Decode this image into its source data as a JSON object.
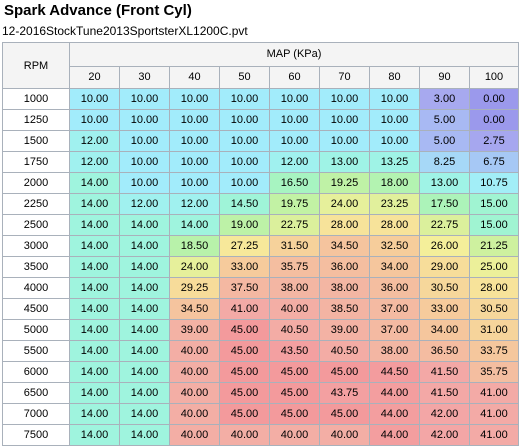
{
  "title": "Spark Advance (Front Cyl)",
  "filename": "12-2016StockTune2013SportsterXL1200C.pvt",
  "table": {
    "row_header_label": "RPM",
    "col_header_label": "MAP (KPa)",
    "map_values": [
      "20",
      "30",
      "40",
      "50",
      "60",
      "70",
      "80",
      "90",
      "100"
    ],
    "rows": [
      {
        "rpm": "1000",
        "values": [
          "10.00",
          "10.00",
          "10.00",
          "10.00",
          "10.00",
          "10.00",
          "10.00",
          "3.00",
          "0.00"
        ],
        "colors": [
          "#a2ecfb",
          "#a2ecfb",
          "#a2ecfb",
          "#a2ecfb",
          "#a2ecfb",
          "#a2ecfb",
          "#a2ecfb",
          "#a7a9ef",
          "#9b99ec"
        ]
      },
      {
        "rpm": "1250",
        "values": [
          "10.00",
          "10.00",
          "10.00",
          "10.00",
          "10.00",
          "10.00",
          "10.00",
          "5.00",
          "0.00"
        ],
        "colors": [
          "#a2ecfb",
          "#a2ecfb",
          "#a2ecfb",
          "#a2ecfb",
          "#a2ecfb",
          "#a2ecfb",
          "#a2ecfb",
          "#a8b9f3",
          "#9b99ec"
        ]
      },
      {
        "rpm": "1500",
        "values": [
          "12.00",
          "10.00",
          "10.00",
          "10.00",
          "10.00",
          "10.00",
          "10.00",
          "5.00",
          "2.75"
        ],
        "colors": [
          "#a0f1ef",
          "#a2ecfb",
          "#a2ecfb",
          "#a2ecfb",
          "#a2ecfb",
          "#a2ecfb",
          "#a2ecfb",
          "#a8b9f3",
          "#a6a7ef"
        ]
      },
      {
        "rpm": "1750",
        "values": [
          "12.00",
          "10.00",
          "10.00",
          "10.00",
          "12.00",
          "13.00",
          "13.25",
          "8.25",
          "6.75"
        ],
        "colors": [
          "#a0f1ef",
          "#a2ecfb",
          "#a2ecfb",
          "#a2ecfb",
          "#a0f1ef",
          "#9ff3e6",
          "#9ff3e6",
          "#a6d8f7",
          "#a6c8f5"
        ]
      },
      {
        "rpm": "2000",
        "values": [
          "14.00",
          "10.00",
          "10.00",
          "10.00",
          "16.50",
          "19.25",
          "18.00",
          "13.00",
          "10.75"
        ],
        "colors": [
          "#9ff4de",
          "#a2ecfb",
          "#a2ecfb",
          "#a2ecfb",
          "#a7f4c1",
          "#bff2a6",
          "#b3f3b1",
          "#9ff3e6",
          "#a2eef7"
        ]
      },
      {
        "rpm": "2250",
        "values": [
          "14.00",
          "12.00",
          "12.00",
          "14.50",
          "19.75",
          "24.00",
          "23.25",
          "17.50",
          "15.00"
        ],
        "colors": [
          "#9ff4de",
          "#a0f1ef",
          "#a0f1ef",
          "#9ff4d8",
          "#c2f2a4",
          "#e6f09b",
          "#e1f09c",
          "#acf3b9",
          "#a0f4d2"
        ]
      },
      {
        "rpm": "2500",
        "values": [
          "14.00",
          "14.00",
          "14.00",
          "19.00",
          "22.75",
          "28.00",
          "28.00",
          "22.75",
          "15.00"
        ],
        "colors": [
          "#9ff4de",
          "#9ff4de",
          "#9ff4de",
          "#bdf2a7",
          "#dbf09c",
          "#f7e39a",
          "#f7e39a",
          "#dbf09c",
          "#a0f4d2"
        ]
      },
      {
        "rpm": "3000",
        "values": [
          "14.00",
          "14.00",
          "18.50",
          "27.25",
          "31.50",
          "34.50",
          "32.50",
          "26.00",
          "21.25"
        ],
        "colors": [
          "#9ff4de",
          "#9ff4de",
          "#b8f2aa",
          "#f7e89a",
          "#f6d29b",
          "#f5c49e",
          "#f6cd9b",
          "#f4ef9a",
          "#cef19f"
        ]
      },
      {
        "rpm": "3500",
        "values": [
          "14.00",
          "14.00",
          "24.00",
          "33.00",
          "35.75",
          "36.00",
          "34.00",
          "29.00",
          "25.00"
        ],
        "colors": [
          "#9ff4de",
          "#9ff4de",
          "#e6f09b",
          "#f6cb9c",
          "#f4bea0",
          "#f4bea0",
          "#f5c69d",
          "#f7dd9a",
          "#ecf09a"
        ]
      },
      {
        "rpm": "4000",
        "values": [
          "14.00",
          "14.00",
          "29.25",
          "37.50",
          "38.00",
          "38.00",
          "36.00",
          "30.50",
          "28.00"
        ],
        "colors": [
          "#9ff4de",
          "#9ff4de",
          "#f7dc9a",
          "#f4b8a2",
          "#f3b6a3",
          "#f3b6a3",
          "#f4bea0",
          "#f6d79b",
          "#f7e39a"
        ]
      },
      {
        "rpm": "4500",
        "values": [
          "14.00",
          "14.00",
          "34.50",
          "41.00",
          "40.00",
          "38.50",
          "37.00",
          "33.00",
          "30.50"
        ],
        "colors": [
          "#9ff4de",
          "#9ff4de",
          "#f5c49e",
          "#f3aaa6",
          "#f3aea5",
          "#f3b4a3",
          "#f4baa2",
          "#f6cb9c",
          "#f6d79b"
        ]
      },
      {
        "rpm": "5000",
        "values": [
          "14.00",
          "14.00",
          "39.00",
          "45.00",
          "40.50",
          "39.00",
          "37.00",
          "34.00",
          "31.00"
        ],
        "colors": [
          "#9ff4de",
          "#9ff4de",
          "#f3b2a4",
          "#f39a9c",
          "#f3aca5",
          "#f3b2a4",
          "#f4baa2",
          "#f5c69d",
          "#f6d49b"
        ]
      },
      {
        "rpm": "5500",
        "values": [
          "14.00",
          "14.00",
          "40.00",
          "45.00",
          "43.50",
          "40.50",
          "38.00",
          "36.50",
          "33.75"
        ],
        "colors": [
          "#9ff4de",
          "#9ff4de",
          "#f3aea5",
          "#f39a9c",
          "#f3a0a1",
          "#f3aca5",
          "#f3b6a3",
          "#f4bca1",
          "#f5c79d"
        ]
      },
      {
        "rpm": "6000",
        "values": [
          "14.00",
          "14.00",
          "40.00",
          "45.00",
          "45.00",
          "45.00",
          "44.50",
          "41.50",
          "35.75"
        ],
        "colors": [
          "#9ff4de",
          "#9ff4de",
          "#f3aea5",
          "#f39a9c",
          "#f39a9c",
          "#f39a9c",
          "#f39c9e",
          "#f3a8a6",
          "#f4bea0"
        ]
      },
      {
        "rpm": "6500",
        "values": [
          "14.00",
          "14.00",
          "40.00",
          "45.00",
          "45.00",
          "43.75",
          "44.00",
          "41.50",
          "41.00"
        ],
        "colors": [
          "#9ff4de",
          "#9ff4de",
          "#f3aea5",
          "#f39a9c",
          "#f39a9c",
          "#f3a0a1",
          "#f39e9f",
          "#f3a8a6",
          "#f3aaa6"
        ]
      },
      {
        "rpm": "7000",
        "values": [
          "14.00",
          "14.00",
          "40.00",
          "45.00",
          "45.00",
          "45.00",
          "44.00",
          "42.00",
          "41.00"
        ],
        "colors": [
          "#9ff4de",
          "#9ff4de",
          "#f3aea5",
          "#f39a9c",
          "#f39a9c",
          "#f39a9c",
          "#f39e9f",
          "#f3a6a6",
          "#f3aaa6"
        ]
      },
      {
        "rpm": "7500",
        "values": [
          "14.00",
          "14.00",
          "40.00",
          "40.00",
          "40.00",
          "40.00",
          "44.00",
          "42.00",
          "41.00"
        ],
        "colors": [
          "#9ff4de",
          "#9ff4de",
          "#f3aea5",
          "#f3aea5",
          "#f3aea5",
          "#f3aea5",
          "#f39e9f",
          "#f3a6a6",
          "#f3aaa6"
        ]
      }
    ]
  }
}
